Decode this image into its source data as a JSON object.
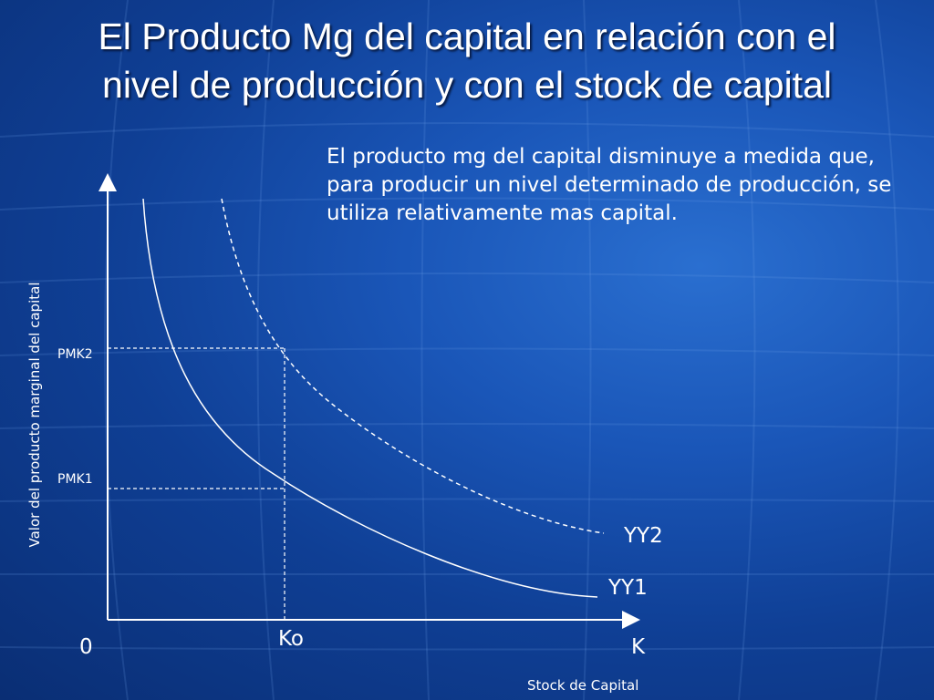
{
  "slide": {
    "title_line1": "El Producto Mg del capital en relación con el",
    "title_line2": "nivel de producción y con el stock de capital",
    "description": "El producto mg del capital disminuye a medida que, para producir un nivel determinado de producción, se utiliza relativamente mas capital."
  },
  "diagram": {
    "y_axis_label": "Valor del producto marginal del capital",
    "x_axis_label": "Stock de Capital",
    "origin_label": "0",
    "x_end_label": "K",
    "ko_label": "Ko",
    "pmk2_label": "PMK2",
    "pmk1_label": "PMK1",
    "curve_yy1_label": "YY1",
    "curve_yy2_label": "YY2",
    "curve_yy1_style": "solid",
    "curve_yy2_style": "dashed",
    "line_color": "#ffffff"
  },
  "colors": {
    "background": "#1a56b8",
    "text": "#ffffff"
  }
}
